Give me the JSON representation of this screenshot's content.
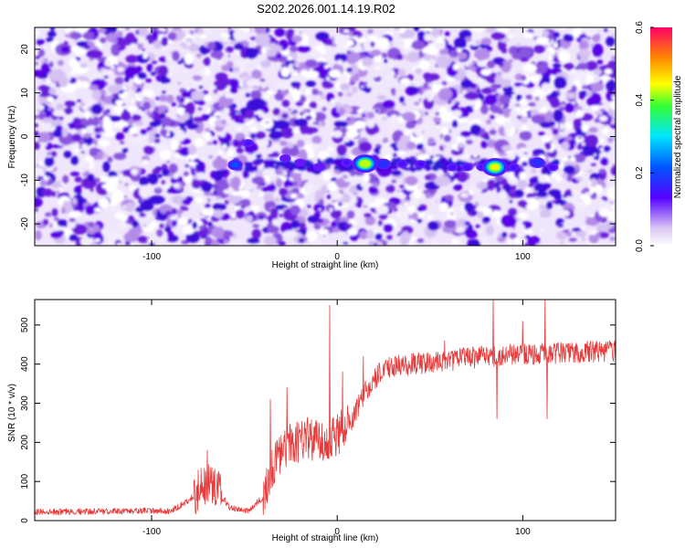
{
  "title": "S202.2026.001.14.19.R02",
  "chart_data": [
    {
      "type": "heatmap",
      "xlabel": "Height of straight line (km)",
      "ylabel": "Frequency (Hz)",
      "xlim": [
        -163,
        150
      ],
      "ylim": [
        -25,
        25
      ],
      "xticks": [
        -100,
        0,
        100
      ],
      "yticks": [
        -20,
        -10,
        0,
        10,
        20
      ],
      "colorbar": {
        "label": "Normalized spectral amplitude",
        "range": [
          0,
          0.6
        ],
        "ticks": [
          0.0,
          0.2,
          0.4,
          0.6
        ]
      },
      "signal_band_frequency": -6.5,
      "signal_band_x_range": [
        -55,
        118
      ],
      "peaks": [
        {
          "x": -55,
          "y": -6.5,
          "amplitude": 0.22
        },
        {
          "x": -48,
          "y": -1.5,
          "amplitude": 0.15
        },
        {
          "x": -28,
          "y": -5.0,
          "amplitude": 0.12
        },
        {
          "x": -20,
          "y": -6.0,
          "amplitude": 0.12
        },
        {
          "x": -10,
          "y": -7.0,
          "amplitude": 0.12
        },
        {
          "x": 5,
          "y": -6.0,
          "amplitude": 0.15
        },
        {
          "x": 15,
          "y": -6.2,
          "amplitude": 0.42
        },
        {
          "x": 25,
          "y": -6.3,
          "amplitude": 0.18
        },
        {
          "x": 35,
          "y": -6.2,
          "amplitude": 0.15
        },
        {
          "x": 45,
          "y": -6.3,
          "amplitude": 0.14
        },
        {
          "x": 62,
          "y": -7.0,
          "amplitude": 0.15
        },
        {
          "x": 70,
          "y": -7.0,
          "amplitude": 0.15
        },
        {
          "x": 78,
          "y": -7.0,
          "amplitude": 0.15
        },
        {
          "x": 85,
          "y": -7.0,
          "amplitude": 0.45
        },
        {
          "x": 95,
          "y": -7.0,
          "amplitude": 0.15
        },
        {
          "x": 108,
          "y": -6.0,
          "amplitude": 0.18
        },
        {
          "x": 116,
          "y": -7.0,
          "amplitude": 0.14
        }
      ]
    },
    {
      "type": "line",
      "xlabel": "Height of straight line (km)",
      "ylabel": "SNR (10 * v/v)",
      "xlim": [
        -163,
        150
      ],
      "ylim": [
        0,
        565
      ],
      "xticks": [
        -100,
        0,
        100
      ],
      "yticks": [
        0,
        100,
        200,
        300,
        400,
        500
      ],
      "color": "#e83a3a",
      "envelope": [
        {
          "x": -163,
          "y": 22
        },
        {
          "x": -90,
          "y": 25
        },
        {
          "x": -80,
          "y": 50
        },
        {
          "x": -72,
          "y": 95
        },
        {
          "x": -65,
          "y": 80
        },
        {
          "x": -58,
          "y": 35
        },
        {
          "x": -48,
          "y": 25
        },
        {
          "x": -40,
          "y": 60
        },
        {
          "x": -35,
          "y": 140
        },
        {
          "x": -28,
          "y": 190
        },
        {
          "x": -15,
          "y": 210
        },
        {
          "x": -5,
          "y": 200
        },
        {
          "x": 0,
          "y": 220
        },
        {
          "x": 8,
          "y": 260
        },
        {
          "x": 15,
          "y": 330
        },
        {
          "x": 25,
          "y": 390
        },
        {
          "x": 40,
          "y": 400
        },
        {
          "x": 60,
          "y": 410
        },
        {
          "x": 80,
          "y": 420
        },
        {
          "x": 100,
          "y": 425
        },
        {
          "x": 130,
          "y": 430
        },
        {
          "x": 150,
          "y": 435
        }
      ],
      "spikes": [
        {
          "x": -70,
          "y": 180
        },
        {
          "x": -36,
          "y": 310
        },
        {
          "x": -27,
          "y": 340
        },
        {
          "x": -4,
          "y": 550
        },
        {
          "x": 3,
          "y": 380
        },
        {
          "x": 14,
          "y": 420
        },
        {
          "x": 58,
          "y": 460
        },
        {
          "x": 84,
          "y": 565
        },
        {
          "x": 86,
          "y": 260
        },
        {
          "x": 100,
          "y": 510
        },
        {
          "x": 112,
          "y": 565
        },
        {
          "x": 113,
          "y": 260
        }
      ]
    }
  ]
}
